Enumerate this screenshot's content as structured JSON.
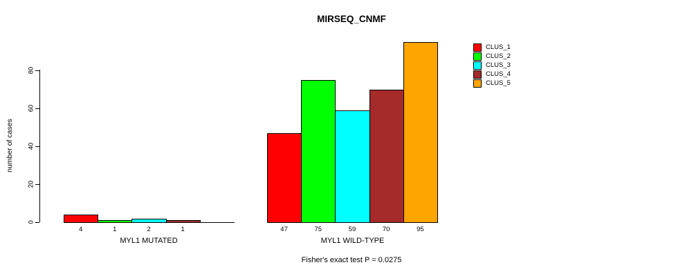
{
  "chart_data": {
    "type": "bar",
    "title": "MIRSEQ_CNMF",
    "ylabel": "number of cases",
    "xlabel": "",
    "yticks": [
      0,
      20,
      40,
      60,
      80
    ],
    "ylim": [
      0,
      95
    ],
    "grid": false,
    "legend_position": "right-outside-top",
    "series": [
      {
        "name": "CLUS_1",
        "color": "#FF0000"
      },
      {
        "name": "CLUS_2",
        "color": "#00FF00"
      },
      {
        "name": "CLUS_3",
        "color": "#00FFFF"
      },
      {
        "name": "CLUS_4",
        "color": "#A52A2A"
      },
      {
        "name": "CLUS_5",
        "color": "#FFA500"
      }
    ],
    "groups": [
      {
        "label": "MYL1 MUTATED",
        "values": [
          4,
          1,
          2,
          1,
          0
        ],
        "bar_labels": [
          "4",
          "1",
          "2",
          "1",
          ""
        ]
      },
      {
        "label": "MYL1 WILD-TYPE",
        "values": [
          47,
          75,
          59,
          70,
          95
        ],
        "bar_labels": [
          "47",
          "75",
          "59",
          "70",
          "95"
        ]
      }
    ],
    "annotation": "Fisher's exact test P = 0.0275"
  }
}
